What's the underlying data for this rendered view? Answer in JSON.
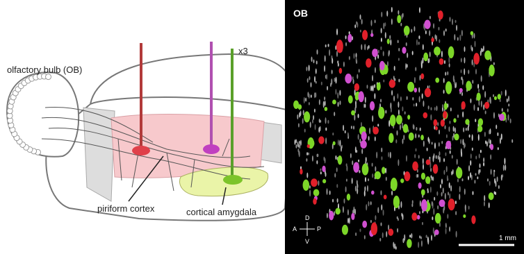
{
  "left_panel": {
    "labels": {
      "olfactory_bulb": "olfactory bulb (OB)",
      "repeat": "x3",
      "piriform": "piriform cortex",
      "amygdala": "cortical amygdala"
    }
  },
  "right_panel": {
    "title": "OB",
    "axes": {
      "dorsal": "D",
      "anterior": "A",
      "posterior": "P",
      "ventral": "V"
    },
    "scale_bar": "1 mm"
  }
}
